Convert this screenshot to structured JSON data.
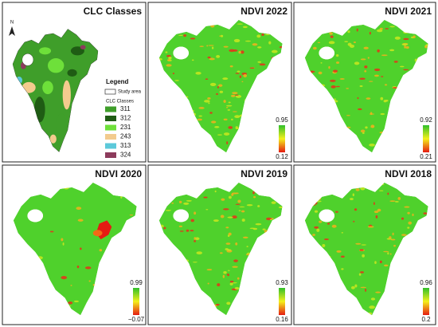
{
  "north": "N",
  "panels": [
    {
      "title": "CLC Classes",
      "legend": {
        "title": "Legend",
        "study_area": "Study area",
        "subtitle": "CLC Classes",
        "classes": [
          {
            "code": "311",
            "color": "#3f9e2a"
          },
          {
            "code": "312",
            "color": "#1f5c14"
          },
          {
            "code": "231",
            "color": "#6ee03a"
          },
          {
            "code": "243",
            "color": "#f3cb8e"
          },
          {
            "code": "313",
            "color": "#5cc9da"
          },
          {
            "code": "324",
            "color": "#8c3b5c"
          }
        ]
      }
    },
    {
      "title": "NDVI 2022",
      "max": 0.95,
      "min": 0.12
    },
    {
      "title": "NDVI 2021",
      "max": 0.92,
      "min": 0.21
    },
    {
      "title": "NDVI 2020",
      "max": 0.99,
      "min": {
        "value": -0.07,
        "label": "−0.07"
      }
    },
    {
      "title": "NDVI 2019",
      "max": 0.93,
      "min": 0.16
    },
    {
      "title": "NDVI 2018",
      "max": 0.96,
      "min": 0.2
    }
  ]
}
